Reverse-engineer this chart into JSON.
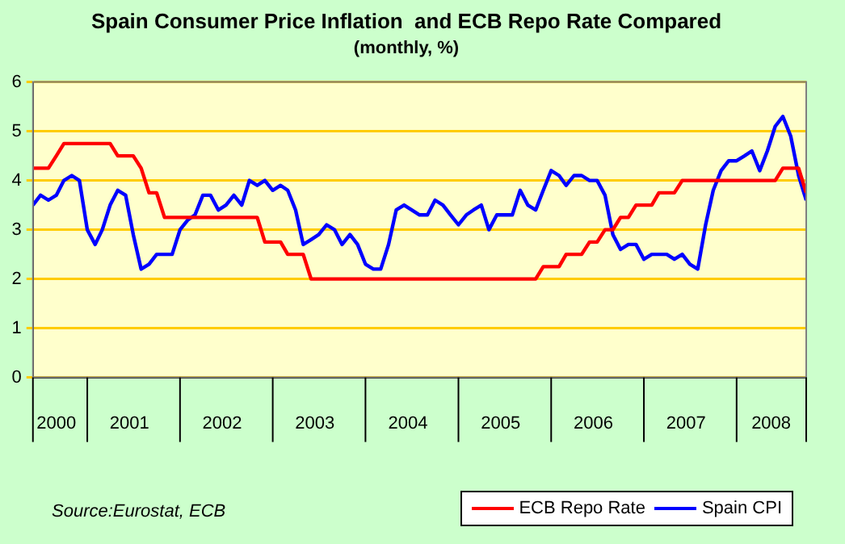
{
  "chart_data": {
    "type": "line",
    "title": "Spain Consumer Price Inflation  and ECB Repo Rate Compared",
    "subtitle": "(monthly, %)",
    "x": [
      "2000-06",
      "2000-07",
      "2000-08",
      "2000-09",
      "2000-10",
      "2000-11",
      "2000-12",
      "2001-01",
      "2001-02",
      "2001-03",
      "2001-04",
      "2001-05",
      "2001-06",
      "2001-07",
      "2001-08",
      "2001-09",
      "2001-10",
      "2001-11",
      "2001-12",
      "2002-01",
      "2002-02",
      "2002-03",
      "2002-04",
      "2002-05",
      "2002-06",
      "2002-07",
      "2002-08",
      "2002-09",
      "2002-10",
      "2002-11",
      "2002-12",
      "2003-01",
      "2003-02",
      "2003-03",
      "2003-04",
      "2003-05",
      "2003-06",
      "2003-07",
      "2003-08",
      "2003-09",
      "2003-10",
      "2003-11",
      "2003-12",
      "2004-01",
      "2004-02",
      "2004-03",
      "2004-04",
      "2004-05",
      "2004-06",
      "2004-07",
      "2004-08",
      "2004-09",
      "2004-10",
      "2004-11",
      "2004-12",
      "2005-01",
      "2005-02",
      "2005-03",
      "2005-04",
      "2005-05",
      "2005-06",
      "2005-07",
      "2005-08",
      "2005-09",
      "2005-10",
      "2005-11",
      "2005-12",
      "2006-01",
      "2006-02",
      "2006-03",
      "2006-04",
      "2006-05",
      "2006-06",
      "2006-07",
      "2006-08",
      "2006-09",
      "2006-10",
      "2006-11",
      "2006-12",
      "2007-01",
      "2007-02",
      "2007-03",
      "2007-04",
      "2007-05",
      "2007-06",
      "2007-07",
      "2007-08",
      "2007-09",
      "2007-10",
      "2007-11",
      "2007-12",
      "2008-01",
      "2008-02",
      "2008-03",
      "2008-04",
      "2008-05",
      "2008-06",
      "2008-07",
      "2008-08",
      "2008-09",
      "2008-10"
    ],
    "series": [
      {
        "name": "ECB Repo Rate",
        "color": "#ff0000",
        "values": [
          4.25,
          4.25,
          4.25,
          4.5,
          4.75,
          4.75,
          4.75,
          4.75,
          4.75,
          4.75,
          4.75,
          4.5,
          4.5,
          4.5,
          4.25,
          3.75,
          3.75,
          3.25,
          3.25,
          3.25,
          3.25,
          3.25,
          3.25,
          3.25,
          3.25,
          3.25,
          3.25,
          3.25,
          3.25,
          3.25,
          2.75,
          2.75,
          2.75,
          2.5,
          2.5,
          2.5,
          2,
          2,
          2,
          2,
          2,
          2,
          2,
          2,
          2,
          2,
          2,
          2,
          2,
          2,
          2,
          2,
          2,
          2,
          2,
          2,
          2,
          2,
          2,
          2,
          2,
          2,
          2,
          2,
          2,
          2,
          2.25,
          2.25,
          2.25,
          2.5,
          2.5,
          2.5,
          2.75,
          2.75,
          3,
          3,
          3.25,
          3.25,
          3.5,
          3.5,
          3.5,
          3.75,
          3.75,
          3.75,
          4,
          4,
          4,
          4,
          4,
          4,
          4,
          4,
          4,
          4,
          4,
          4,
          4,
          4.25,
          4.25,
          4.25,
          3.75
        ]
      },
      {
        "name": "Spain CPI",
        "color": "#0000ff",
        "values": [
          3.5,
          3.7,
          3.6,
          3.7,
          4.0,
          4.1,
          4.0,
          3.0,
          2.7,
          3.0,
          3.5,
          3.8,
          3.7,
          2.9,
          2.2,
          2.3,
          2.5,
          2.5,
          2.5,
          3.0,
          3.2,
          3.3,
          3.7,
          3.7,
          3.4,
          3.5,
          3.7,
          3.5,
          4.0,
          3.9,
          4.0,
          3.8,
          3.9,
          3.8,
          3.4,
          2.7,
          2.8,
          2.9,
          3.1,
          3.0,
          2.7,
          2.9,
          2.7,
          2.3,
          2.2,
          2.2,
          2.7,
          3.4,
          3.5,
          3.4,
          3.3,
          3.3,
          3.6,
          3.5,
          3.3,
          3.1,
          3.3,
          3.4,
          3.5,
          3.0,
          3.3,
          3.3,
          3.3,
          3.8,
          3.5,
          3.4,
          3.8,
          4.2,
          4.1,
          3.9,
          4.1,
          4.1,
          4.0,
          4.0,
          3.7,
          2.9,
          2.6,
          2.7,
          2.7,
          2.4,
          2.5,
          2.5,
          2.5,
          2.4,
          2.5,
          2.3,
          2.2,
          3.1,
          3.8,
          4.2,
          4.4,
          4.4,
          4.5,
          4.6,
          4.2,
          4.6,
          5.1,
          5.3,
          4.9,
          4.1,
          3.6
        ]
      }
    ],
    "xlim": [
      "2000-06",
      "2008-10"
    ],
    "xticks": [
      {
        "value": "2000-09",
        "label": "2000"
      },
      {
        "value": "2001-06-16",
        "label": "2001"
      },
      {
        "value": "2002-06-16",
        "label": "2002"
      },
      {
        "value": "2003-06-16",
        "label": "2003"
      },
      {
        "value": "2004-06-16",
        "label": "2004"
      },
      {
        "value": "2005-06-16",
        "label": "2005"
      },
      {
        "value": "2006-06-16",
        "label": "2006"
      },
      {
        "value": "2007-06-16",
        "label": "2007"
      },
      {
        "value": "2008-05-16",
        "label": "2008"
      }
    ],
    "ylim": [
      0,
      6
    ],
    "yticks": [
      0,
      1,
      2,
      3,
      4,
      5,
      6
    ],
    "grid": "y",
    "legend": "bottom right",
    "marker": "none",
    "line_style": "solid",
    "annotations": [
      "Source:Eurostat, ECB"
    ]
  }
}
